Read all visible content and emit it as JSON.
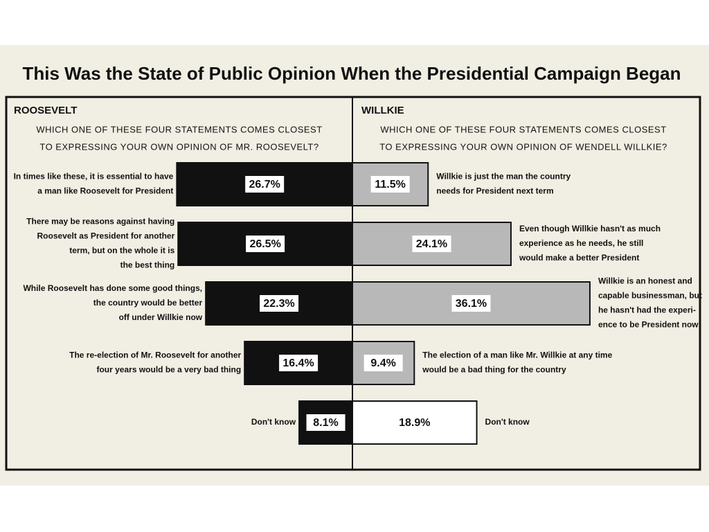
{
  "title": "This Was the State of Public Opinion When the Presidential Campaign Began",
  "chart_data": [
    {
      "type": "bar",
      "direction": "left",
      "title": "ROOSEVELT",
      "subtitle": [
        "WHICH ONE OF THESE FOUR STATEMENTS COMES CLOSEST",
        "TO EXPRESSING YOUR OWN OPINION OF MR. ROOSEVELT?"
      ],
      "categories": [
        [
          "In times like these, it is essential to have",
          "a man like Roosevelt for President"
        ],
        [
          "There may be reasons against having",
          "Roosevelt as President for another",
          "term, but on the whole it is",
          "the best thing"
        ],
        [
          "While Roosevelt has done some good things,",
          "the country would be better",
          "off under Willkie now"
        ],
        [
          "The re-election of Mr. Roosevelt for another",
          "four years would be a very bad thing"
        ],
        [
          "Don't know"
        ]
      ],
      "values": [
        26.7,
        26.5,
        22.3,
        16.4,
        8.1
      ],
      "value_labels": [
        "26.7%",
        "26.5%",
        "22.3%",
        "16.4%",
        "8.1%"
      ],
      "colors": [
        "#111111",
        "#111111",
        "#111111",
        "#111111",
        "#111111"
      ]
    },
    {
      "type": "bar",
      "direction": "right",
      "title": "WILLKIE",
      "subtitle": [
        "WHICH ONE OF THESE FOUR STATEMENTS COMES CLOSEST",
        "TO EXPRESSING YOUR OWN OPINION OF WENDELL WILLKIE?"
      ],
      "categories": [
        [
          "Willkie is just the man the country",
          "needs for President next term"
        ],
        [
          "Even though Willkie hasn't as much",
          "experience as he needs, he still",
          "would make a better President"
        ],
        [
          "Willkie is an honest and",
          "capable businessman, but",
          "he hasn't had the experi-",
          "ence to be President now"
        ],
        [
          "The election of a man like Mr. Willkie at any time",
          "would be a bad thing for the country"
        ],
        [
          "Don't know"
        ]
      ],
      "values": [
        11.5,
        24.1,
        36.1,
        9.4,
        18.9
      ],
      "value_labels": [
        "11.5%",
        "24.1%",
        "36.1%",
        "9.4%",
        "18.9%"
      ],
      "colors": [
        "#b8b8b8",
        "#b8b8b8",
        "#b8b8b8",
        "#b8b8b8",
        "#ffffff"
      ]
    }
  ]
}
